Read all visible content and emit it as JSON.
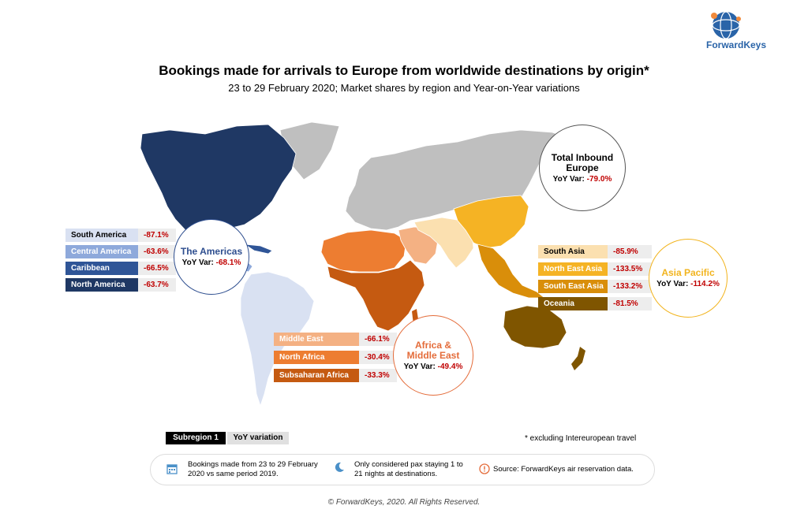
{
  "header": {
    "title": "Bookings made for arrivals to Europe from worldwide destinations by origin*",
    "subtitle": "23 to 29 February 2020; Market shares by region and Year-on-Year variations",
    "logo_text": "ForwardKeys"
  },
  "total": {
    "name": "Total Inbound Europe",
    "var_label": "YoY Var:",
    "var": "-79.0%"
  },
  "americas": {
    "name": "The Americas",
    "var_label": "YoY Var:",
    "var": "-68.1%",
    "color": "#2e4e8f",
    "subregions": [
      {
        "name": "South America",
        "var": "-87.1%",
        "color": "#d9e1f2",
        "text_color": "#000000"
      },
      {
        "name": "Central America",
        "var": "-63.6%",
        "color": "#8ea9db",
        "text_color": "#ffffff"
      },
      {
        "name": "Caribbean",
        "var": "-66.5%",
        "color": "#2f5597",
        "text_color": "#ffffff"
      },
      {
        "name": "North America",
        "var": "-63.7%",
        "color": "#1f3864",
        "text_color": "#ffffff"
      }
    ]
  },
  "africa_me": {
    "name": "Africa & Middle East",
    "var_label": "YoY Var:",
    "var": "-49.4%",
    "color": "#e46c3a",
    "subregions": [
      {
        "name": "Middle East",
        "var": "-66.1%",
        "color": "#f4b183",
        "text_color": "#ffffff"
      },
      {
        "name": "North Africa",
        "var": "-30.4%",
        "color": "#ed7d31",
        "text_color": "#ffffff"
      },
      {
        "name": "Subsaharan Africa",
        "var": "-33.3%",
        "color": "#c55a11",
        "text_color": "#ffffff"
      }
    ]
  },
  "asia_pacific": {
    "name": "Asia Pacific",
    "var_label": "YoY Var:",
    "var": "-114.2%",
    "color": "#f2b41e",
    "subregions": [
      {
        "name": "South Asia",
        "var": "-85.9%",
        "color": "#fbe0b0",
        "text_color": "#000000"
      },
      {
        "name": "North East Asia",
        "var": "-133.5%",
        "color": "#f5b324",
        "text_color": "#ffffff"
      },
      {
        "name": "South East Asia",
        "var": "-133.2%",
        "color": "#d98e0a",
        "text_color": "#ffffff"
      },
      {
        "name": "Oceania",
        "var": "-81.5%",
        "color": "#7f5500",
        "text_color": "#ffffff"
      }
    ]
  },
  "legend": {
    "subregion": "Subregion 1",
    "variation": "YoY variation"
  },
  "footnote": "* excluding Intereuropean travel",
  "info": {
    "bookings": "Bookings made from 23 to 29 February 2020 vs same period 2019.",
    "pax": "Only considered pax staying 1 to 21 nights at destinations.",
    "source": "Source: ForwardKeys air reservation data."
  },
  "copyright": "© ForwardKeys, 2020. All Rights Reserved.",
  "colors": {
    "europe_rest": "#bfbfbf",
    "variation_red": "#c00000"
  }
}
